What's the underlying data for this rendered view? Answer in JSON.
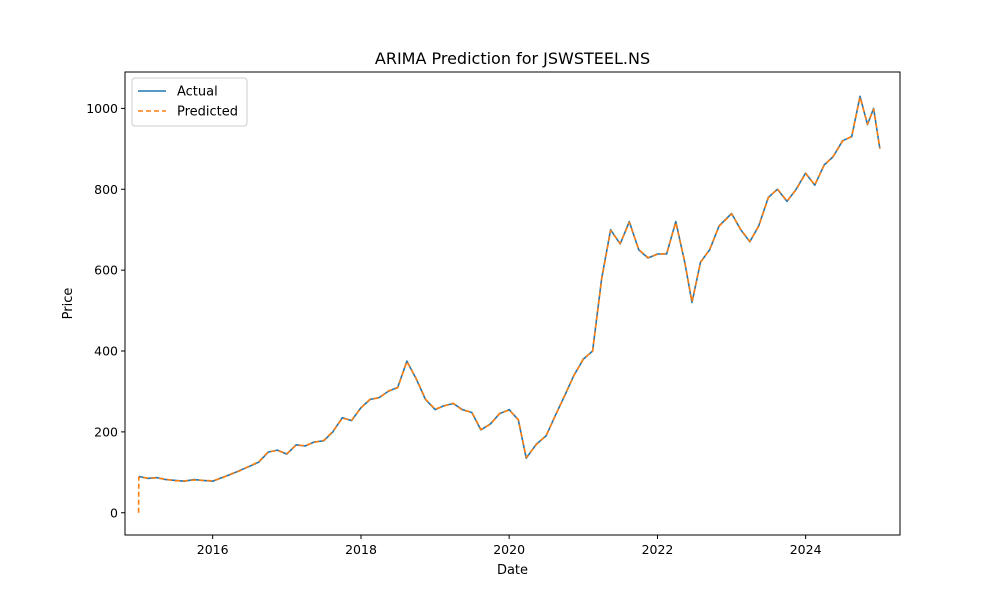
{
  "chart_data": {
    "type": "line",
    "title": "ARIMA Prediction for JSWSTEEL.NS",
    "xlabel": "Date",
    "ylabel": "Price",
    "xlim": [
      "2014-10-26",
      "2025-04-10"
    ],
    "ylim": [
      -55,
      1090
    ],
    "x_ticks": [
      "2016",
      "2018",
      "2020",
      "2022",
      "2024"
    ],
    "y_ticks": [
      0,
      200,
      400,
      600,
      800,
      1000
    ],
    "grid": false,
    "legend_position": "upper left",
    "series": [
      {
        "name": "Actual",
        "color": "#1f77b4",
        "style": "solid",
        "points": [
          [
            "2015-01-01",
            90
          ],
          [
            "2015-02-15",
            85
          ],
          [
            "2015-04-01",
            87
          ],
          [
            "2015-05-15",
            82
          ],
          [
            "2015-07-01",
            80
          ],
          [
            "2015-08-15",
            78
          ],
          [
            "2015-10-01",
            82
          ],
          [
            "2015-11-15",
            80
          ],
          [
            "2016-01-01",
            78
          ],
          [
            "2016-02-15",
            87
          ],
          [
            "2016-04-01",
            95
          ],
          [
            "2016-05-15",
            105
          ],
          [
            "2016-07-01",
            115
          ],
          [
            "2016-08-15",
            125
          ],
          [
            "2016-10-01",
            150
          ],
          [
            "2016-11-15",
            155
          ],
          [
            "2017-01-01",
            145
          ],
          [
            "2017-02-15",
            168
          ],
          [
            "2017-04-01",
            165
          ],
          [
            "2017-05-15",
            175
          ],
          [
            "2017-07-01",
            178
          ],
          [
            "2017-08-15",
            200
          ],
          [
            "2017-10-01",
            235
          ],
          [
            "2017-11-15",
            228
          ],
          [
            "2018-01-01",
            260
          ],
          [
            "2018-02-15",
            280
          ],
          [
            "2018-04-01",
            285
          ],
          [
            "2018-05-15",
            300
          ],
          [
            "2018-07-01",
            310
          ],
          [
            "2018-08-15",
            375
          ],
          [
            "2018-10-01",
            330
          ],
          [
            "2018-11-15",
            280
          ],
          [
            "2019-01-01",
            255
          ],
          [
            "2019-02-15",
            265
          ],
          [
            "2019-04-01",
            270
          ],
          [
            "2019-05-15",
            255
          ],
          [
            "2019-07-01",
            248
          ],
          [
            "2019-08-15",
            205
          ],
          [
            "2019-10-01",
            220
          ],
          [
            "2019-11-15",
            245
          ],
          [
            "2020-01-01",
            255
          ],
          [
            "2020-02-15",
            230
          ],
          [
            "2020-03-25",
            135
          ],
          [
            "2020-05-15",
            170
          ],
          [
            "2020-07-01",
            190
          ],
          [
            "2020-08-15",
            240
          ],
          [
            "2020-10-01",
            290
          ],
          [
            "2020-11-15",
            340
          ],
          [
            "2021-01-01",
            380
          ],
          [
            "2021-02-15",
            400
          ],
          [
            "2021-04-01",
            580
          ],
          [
            "2021-05-15",
            700
          ],
          [
            "2021-07-01",
            665
          ],
          [
            "2021-08-15",
            720
          ],
          [
            "2021-10-01",
            650
          ],
          [
            "2021-11-15",
            630
          ],
          [
            "2022-01-01",
            640
          ],
          [
            "2022-02-15",
            640
          ],
          [
            "2022-04-01",
            720
          ],
          [
            "2022-05-15",
            620
          ],
          [
            "2022-06-20",
            520
          ],
          [
            "2022-08-01",
            620
          ],
          [
            "2022-09-15",
            650
          ],
          [
            "2022-11-01",
            710
          ],
          [
            "2023-01-01",
            740
          ],
          [
            "2023-02-15",
            700
          ],
          [
            "2023-04-01",
            670
          ],
          [
            "2023-05-15",
            710
          ],
          [
            "2023-07-01",
            780
          ],
          [
            "2023-08-15",
            800
          ],
          [
            "2023-10-01",
            770
          ],
          [
            "2023-11-15",
            800
          ],
          [
            "2024-01-01",
            840
          ],
          [
            "2024-02-15",
            810
          ],
          [
            "2024-04-01",
            860
          ],
          [
            "2024-05-15",
            880
          ],
          [
            "2024-07-01",
            920
          ],
          [
            "2024-08-15",
            930
          ],
          [
            "2024-09-25",
            1030
          ],
          [
            "2024-11-01",
            960
          ],
          [
            "2024-12-01",
            1000
          ],
          [
            "2025-01-01",
            900
          ]
        ]
      },
      {
        "name": "Predicted",
        "color": "#ff7f0e",
        "style": "dashed",
        "points": [
          [
            "2015-01-01",
            0
          ],
          [
            "2015-01-02",
            88
          ],
          [
            "2015-02-15",
            86
          ],
          [
            "2015-04-01",
            86
          ],
          [
            "2015-05-15",
            83
          ],
          [
            "2015-07-01",
            79
          ],
          [
            "2015-08-15",
            79
          ],
          [
            "2015-10-01",
            81
          ],
          [
            "2015-11-15",
            80
          ],
          [
            "2016-01-01",
            79
          ],
          [
            "2016-02-15",
            86
          ],
          [
            "2016-04-01",
            96
          ],
          [
            "2016-05-15",
            104
          ],
          [
            "2016-07-01",
            116
          ],
          [
            "2016-08-15",
            126
          ],
          [
            "2016-10-01",
            151
          ],
          [
            "2016-11-15",
            154
          ],
          [
            "2017-01-01",
            146
          ],
          [
            "2017-02-15",
            167
          ],
          [
            "2017-04-01",
            166
          ],
          [
            "2017-05-15",
            174
          ],
          [
            "2017-07-01",
            179
          ],
          [
            "2017-08-15",
            201
          ],
          [
            "2017-10-01",
            234
          ],
          [
            "2017-11-15",
            229
          ],
          [
            "2018-01-01",
            259
          ],
          [
            "2018-02-15",
            281
          ],
          [
            "2018-04-01",
            284
          ],
          [
            "2018-05-15",
            301
          ],
          [
            "2018-07-01",
            309
          ],
          [
            "2018-08-15",
            374
          ],
          [
            "2018-10-01",
            331
          ],
          [
            "2018-11-15",
            281
          ],
          [
            "2019-01-01",
            256
          ],
          [
            "2019-02-15",
            264
          ],
          [
            "2019-04-01",
            271
          ],
          [
            "2019-05-15",
            254
          ],
          [
            "2019-07-01",
            249
          ],
          [
            "2019-08-15",
            206
          ],
          [
            "2019-10-01",
            219
          ],
          [
            "2019-11-15",
            246
          ],
          [
            "2020-01-01",
            254
          ],
          [
            "2020-02-15",
            231
          ],
          [
            "2020-03-25",
            137
          ],
          [
            "2020-05-15",
            169
          ],
          [
            "2020-07-01",
            191
          ],
          [
            "2020-08-15",
            239
          ],
          [
            "2020-10-01",
            291
          ],
          [
            "2020-11-15",
            339
          ],
          [
            "2021-01-01",
            381
          ],
          [
            "2021-02-15",
            399
          ],
          [
            "2021-04-01",
            578
          ],
          [
            "2021-05-15",
            698
          ],
          [
            "2021-07-01",
            666
          ],
          [
            "2021-08-15",
            718
          ],
          [
            "2021-10-01",
            651
          ],
          [
            "2021-11-15",
            631
          ],
          [
            "2022-01-01",
            639
          ],
          [
            "2022-02-15",
            641
          ],
          [
            "2022-04-01",
            718
          ],
          [
            "2022-05-15",
            621
          ],
          [
            "2022-06-20",
            522
          ],
          [
            "2022-08-01",
            619
          ],
          [
            "2022-09-15",
            651
          ],
          [
            "2022-11-01",
            709
          ],
          [
            "2023-01-01",
            739
          ],
          [
            "2023-02-15",
            701
          ],
          [
            "2023-04-01",
            671
          ],
          [
            "2023-05-15",
            709
          ],
          [
            "2023-07-01",
            779
          ],
          [
            "2023-08-15",
            801
          ],
          [
            "2023-10-01",
            771
          ],
          [
            "2023-11-15",
            799
          ],
          [
            "2024-01-01",
            839
          ],
          [
            "2024-02-15",
            811
          ],
          [
            "2024-04-01",
            859
          ],
          [
            "2024-05-15",
            881
          ],
          [
            "2024-07-01",
            919
          ],
          [
            "2024-08-15",
            931
          ],
          [
            "2024-09-25",
            1028
          ],
          [
            "2024-11-01",
            961
          ],
          [
            "2024-12-01",
            998
          ],
          [
            "2025-01-01",
            901
          ]
        ]
      }
    ]
  }
}
